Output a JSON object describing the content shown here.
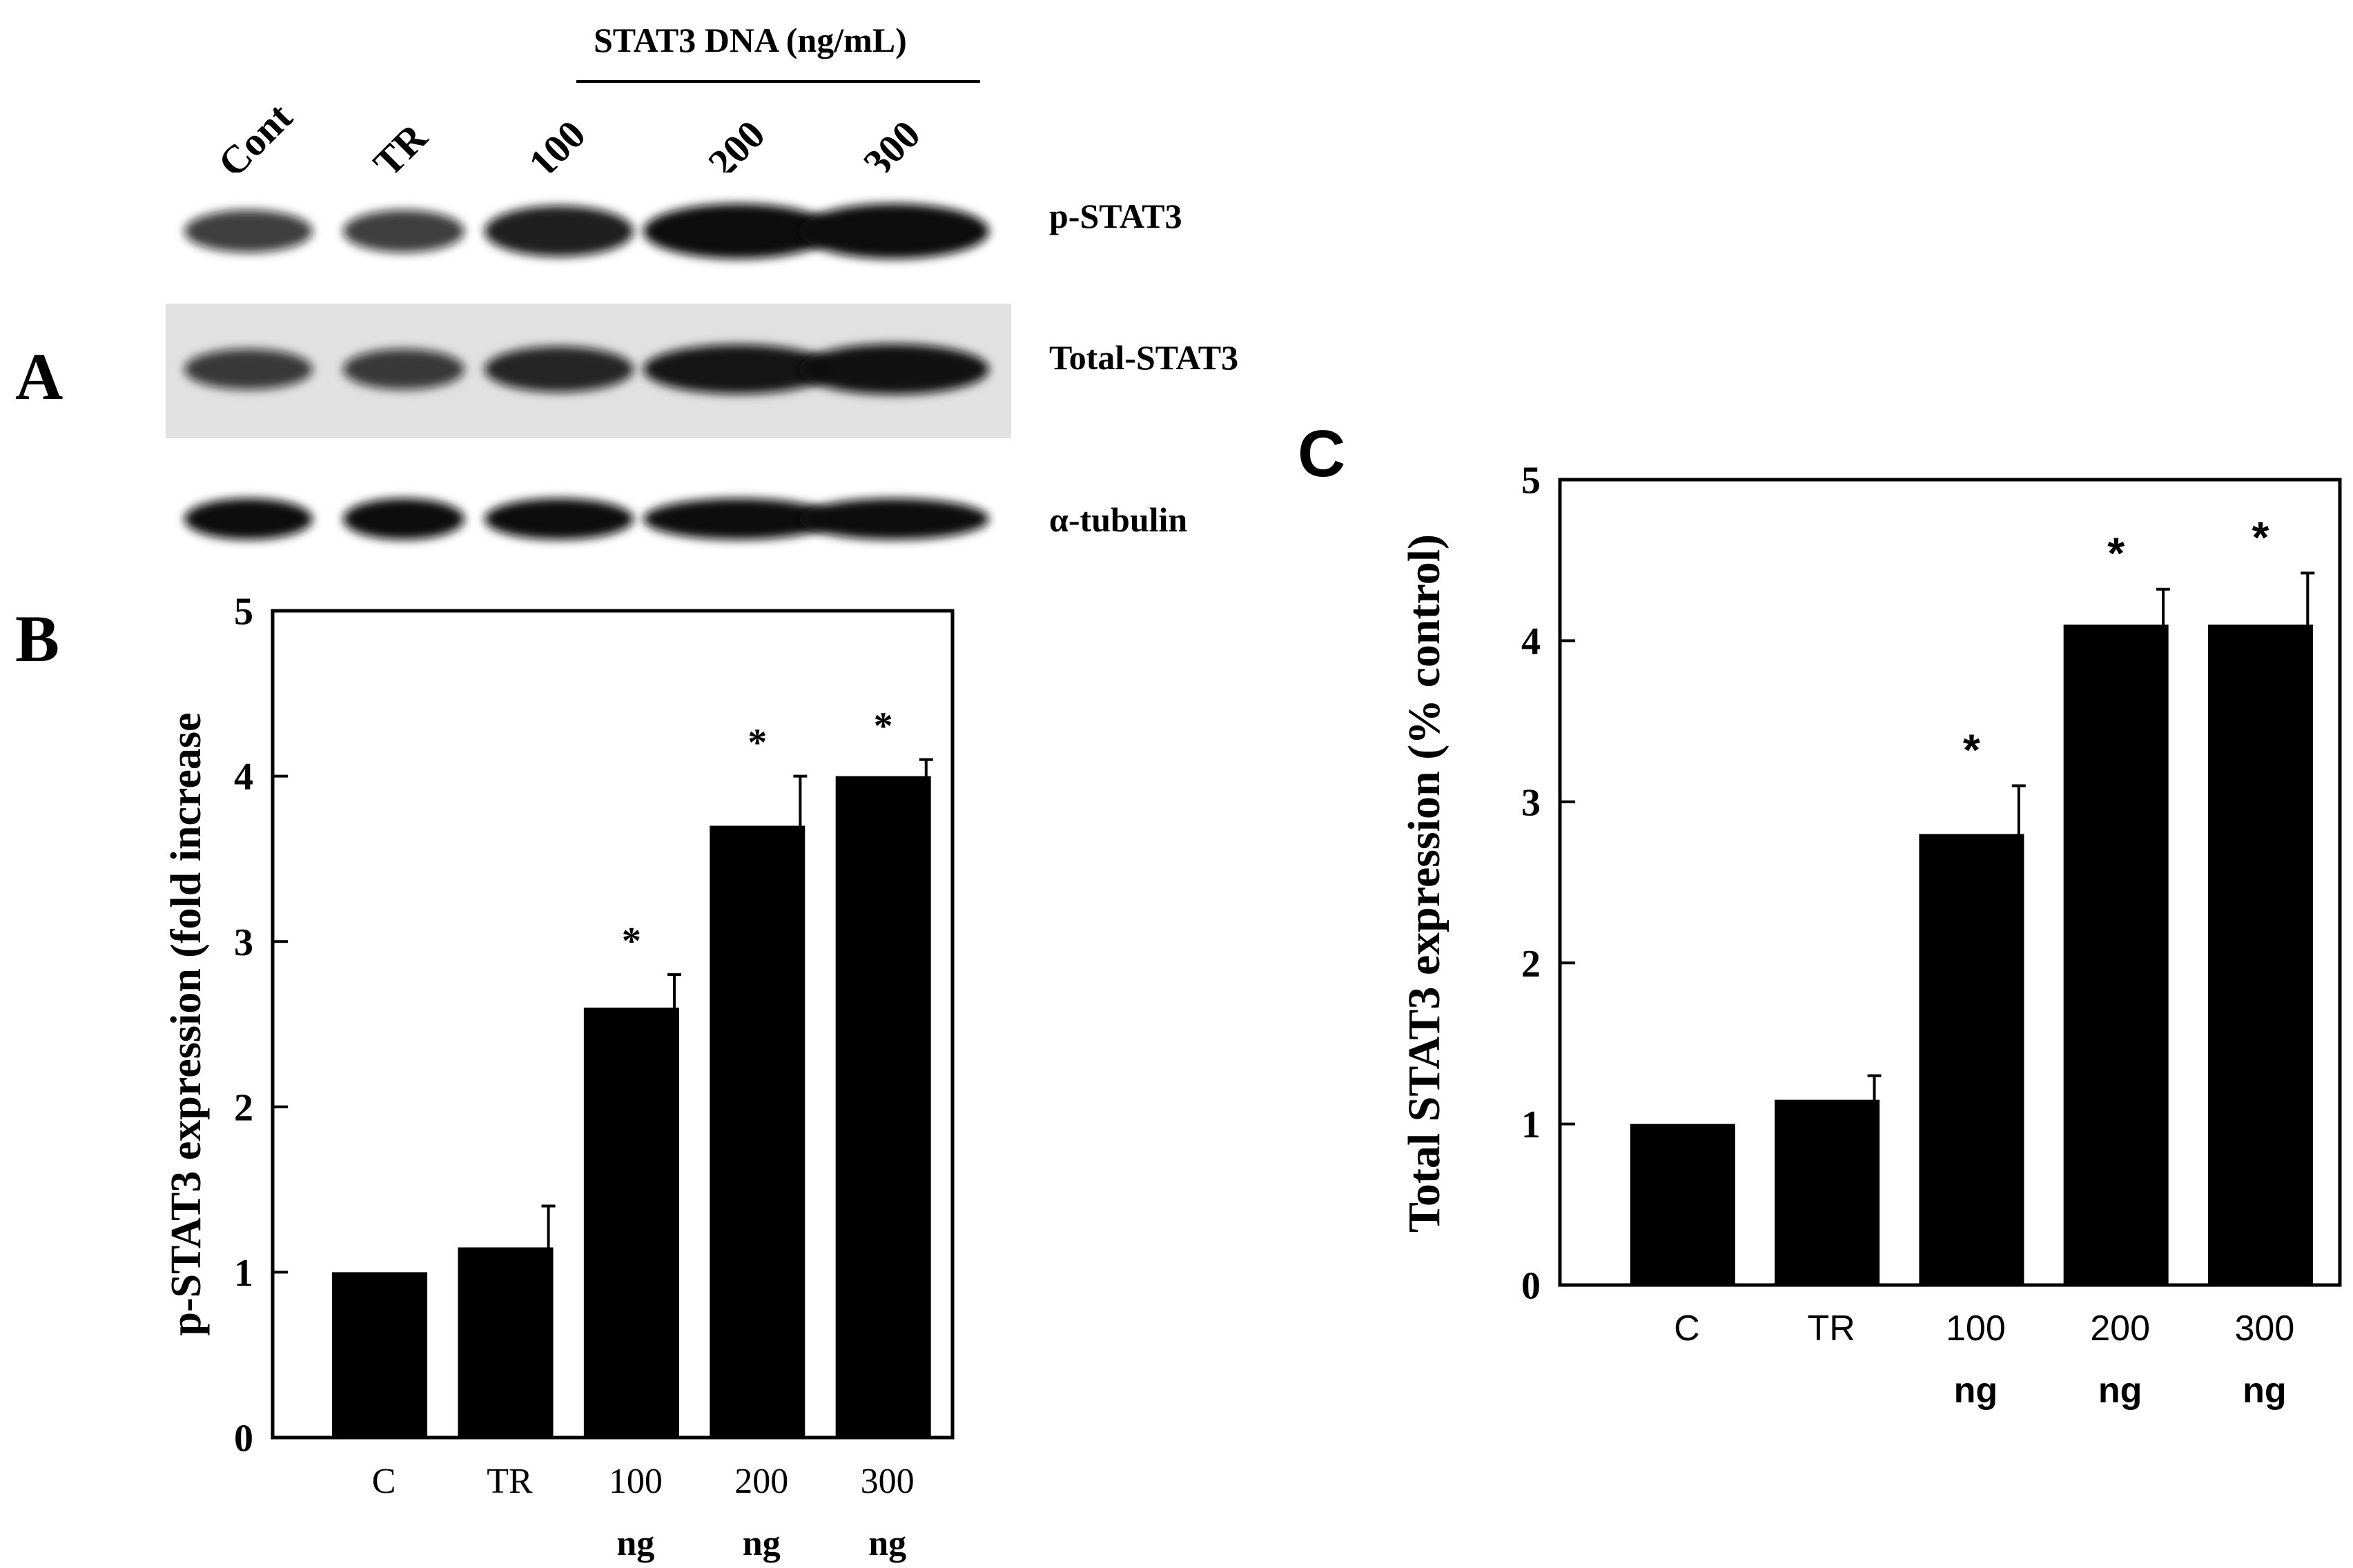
{
  "panels": {
    "A": "A",
    "B": "B",
    "C": "C"
  },
  "blot": {
    "treatment_header": "STAT3 DNA (ng/mL)",
    "lane_labels": [
      "Cont",
      "TR",
      "100",
      "200",
      "300"
    ],
    "rows": [
      {
        "label": "p-STAT3",
        "intensity": [
          0.55,
          0.55,
          0.85,
          1.0,
          1.0
        ]
      },
      {
        "label": "Total-STAT3",
        "intensity": [
          0.55,
          0.55,
          0.75,
          0.9,
          0.95
        ]
      },
      {
        "label": "α-tubulin",
        "intensity": [
          1.0,
          1.0,
          1.0,
          1.0,
          1.0
        ]
      }
    ]
  },
  "chart_data": [
    {
      "type": "bar",
      "panel": "B",
      "categories": [
        "C",
        "TR",
        "100 ng",
        "200 ng",
        "300 ng"
      ],
      "category_lines": [
        [
          "C"
        ],
        [
          "TR"
        ],
        [
          "100",
          "ng"
        ],
        [
          "200",
          "ng"
        ],
        [
          "300",
          "ng"
        ]
      ],
      "values": [
        1.0,
        1.15,
        2.6,
        3.7,
        4.0
      ],
      "errors": [
        0,
        0.25,
        0.2,
        0.3,
        0.1
      ],
      "significance": [
        "",
        "",
        "*",
        "*",
        "*"
      ],
      "ylabel": "p-STAT3 expression (fold increase",
      "ylim": [
        0,
        5
      ],
      "yticks": [
        0,
        1,
        2,
        3,
        4,
        5
      ],
      "bar_color": "#000000",
      "grid": false
    },
    {
      "type": "bar",
      "panel": "C",
      "categories": [
        "C",
        "TR",
        "100 ng",
        "200 ng",
        "300 ng"
      ],
      "category_lines": [
        [
          "C"
        ],
        [
          "TR"
        ],
        [
          "100",
          "ng"
        ],
        [
          "200",
          "ng"
        ],
        [
          "300",
          "ng"
        ]
      ],
      "values": [
        1.0,
        1.15,
        2.8,
        4.1,
        4.1
      ],
      "errors": [
        0,
        0.15,
        0.3,
        0.22,
        0.32
      ],
      "significance": [
        "",
        "",
        "*",
        "*",
        "*"
      ],
      "ylabel": "Total STAT3 expression (% control)",
      "ylim": [
        0,
        5
      ],
      "yticks": [
        0,
        1,
        2,
        3,
        4,
        5
      ],
      "bar_color": "#000000",
      "grid": false
    }
  ]
}
